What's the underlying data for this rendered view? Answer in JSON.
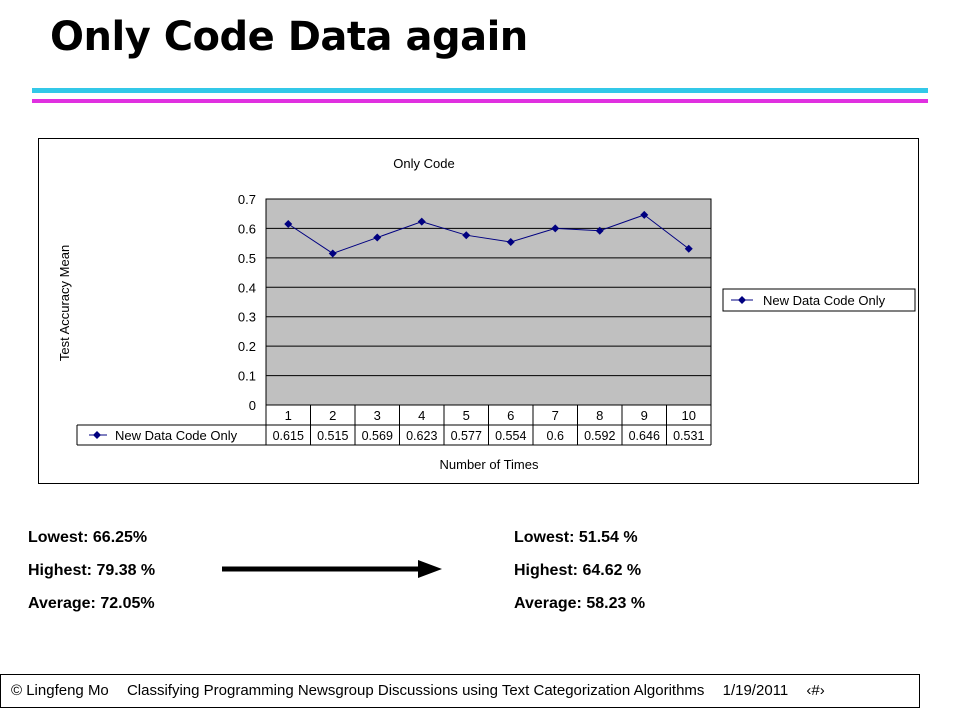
{
  "slide": {
    "title": "Only Code Data again"
  },
  "chart_data": {
    "type": "line",
    "title": "Only Code",
    "xlabel": "Number of Times",
    "ylabel": "Test Accuracy Mean",
    "categories": [
      "1",
      "2",
      "3",
      "4",
      "5",
      "6",
      "7",
      "8",
      "9",
      "10"
    ],
    "series": [
      {
        "name": "New Data Code Only",
        "values": [
          0.615,
          0.515,
          0.569,
          0.623,
          0.577,
          0.554,
          0.6,
          0.592,
          0.646,
          0.531
        ],
        "labels": [
          "0.615",
          "0.515",
          "0.569",
          "0.623",
          "0.577",
          "0.554",
          "0.6",
          "0.592",
          "0.646",
          "0.531"
        ],
        "color": "#000080"
      }
    ],
    "ylim": [
      0,
      0.7
    ],
    "yticks": [
      "0",
      "0.1",
      "0.2",
      "0.3",
      "0.4",
      "0.5",
      "0.6",
      "0.7"
    ],
    "grid": true,
    "plot_background": "#c0c0c0",
    "legend": "right",
    "data_table": true
  },
  "stats": {
    "before": {
      "lowest": "Lowest: 66.25%",
      "highest": "Highest: 79.38 %",
      "average": "Average: 72.05%"
    },
    "after": {
      "lowest": "Lowest: 51.54 %",
      "highest": "Highest: 64.62 %",
      "average": "Average: 58.23 %"
    }
  },
  "footer": {
    "author": "© Lingfeng Mo",
    "talk_title": "Classifying Programming Newsgroup Discussions using Text Categorization Algorithms",
    "date": "1/19/2011",
    "page_glyph": "‹#›"
  }
}
